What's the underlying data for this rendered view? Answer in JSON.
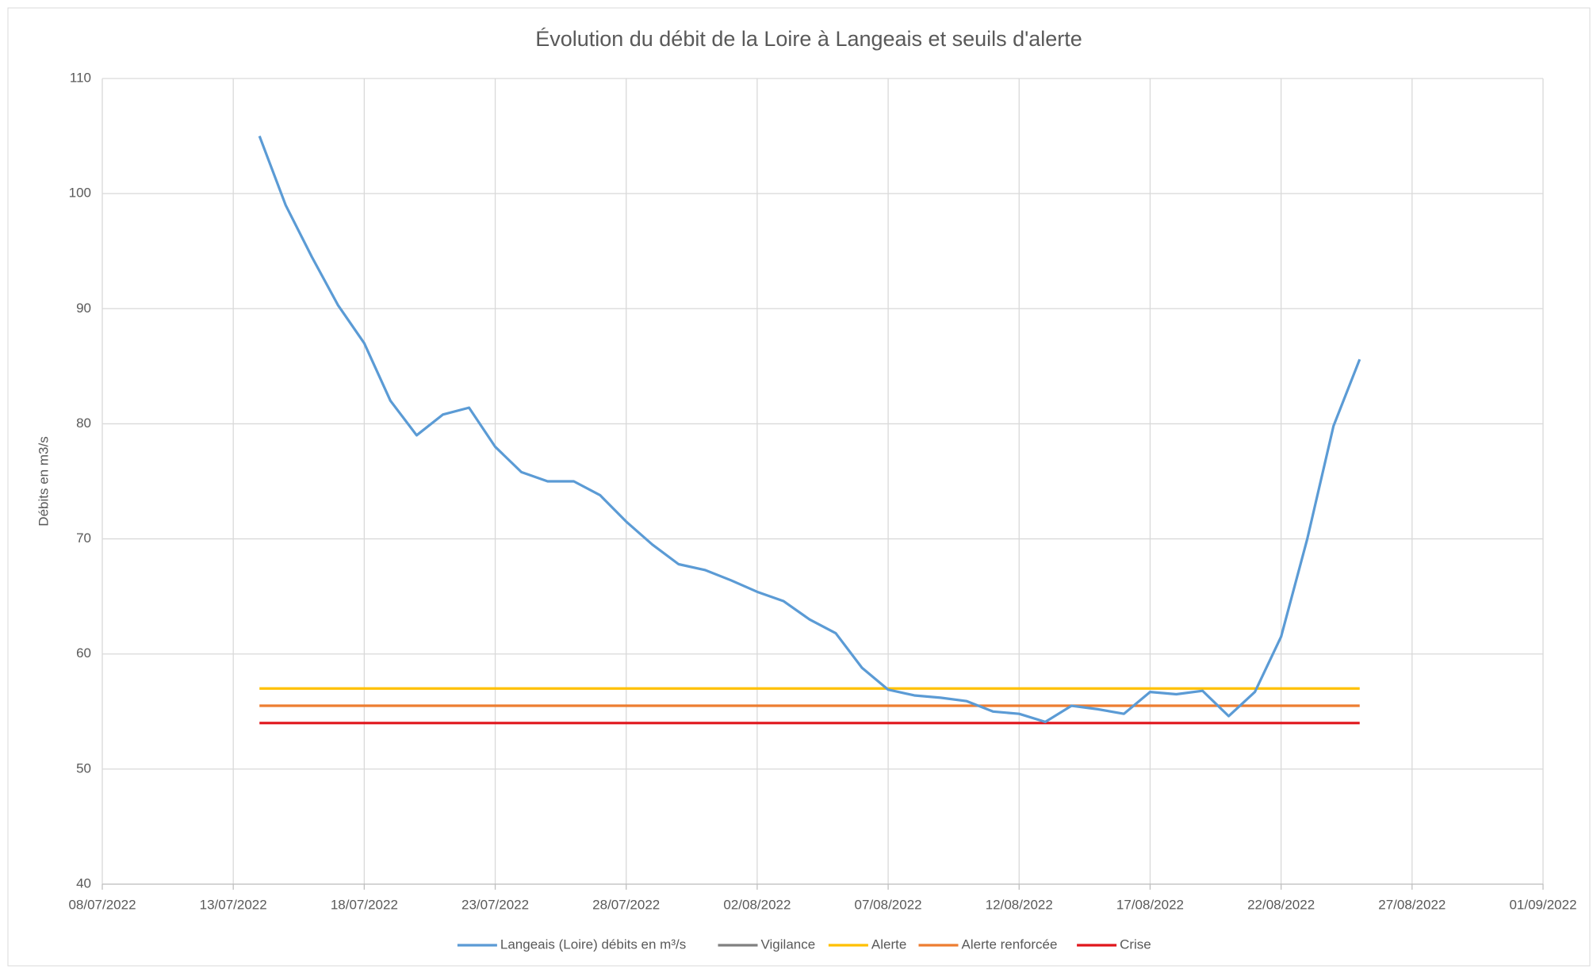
{
  "chart_data": {
    "type": "line",
    "title": "Évolution du débit de la Loire à Langeais et seuils d'alerte",
    "y_label": "Débits en m3/s",
    "x": [
      "2022-07-14",
      "2022-07-15",
      "2022-07-16",
      "2022-07-17",
      "2022-07-18",
      "2022-07-19",
      "2022-07-20",
      "2022-07-21",
      "2022-07-22",
      "2022-07-23",
      "2022-07-24",
      "2022-07-25",
      "2022-07-26",
      "2022-07-27",
      "2022-07-28",
      "2022-07-29",
      "2022-07-30",
      "2022-07-31",
      "2022-08-01",
      "2022-08-02",
      "2022-08-03",
      "2022-08-04",
      "2022-08-05",
      "2022-08-06",
      "2022-08-07",
      "2022-08-08",
      "2022-08-09",
      "2022-08-10",
      "2022-08-11",
      "2022-08-12",
      "2022-08-13",
      "2022-08-14",
      "2022-08-15",
      "2022-08-16",
      "2022-08-17",
      "2022-08-18",
      "2022-08-19",
      "2022-08-20",
      "2022-08-21",
      "2022-08-22",
      "2022-08-23",
      "2022-08-24",
      "2022-08-25"
    ],
    "series": [
      {
        "name": "Langeais (Loire) débits en m³/s",
        "color": "#5b9bd5",
        "values": [
          105,
          99,
          94.5,
          90.3,
          87,
          82,
          79,
          80.8,
          81.4,
          78,
          75.8,
          75,
          75,
          73.8,
          71.5,
          69.5,
          67.8,
          67.3,
          66.4,
          65.4,
          64.6,
          63,
          61.8,
          58.8,
          56.9,
          56.4,
          56.2,
          55.9,
          55,
          54.8,
          54.1,
          55.5,
          55.2,
          54.8,
          56.7,
          56.5,
          56.8,
          54.6,
          56.7,
          61.5,
          70,
          79.8,
          85.6
        ]
      },
      {
        "name": "Vigilance",
        "color": "#808080",
        "values": [
          null,
          null,
          null,
          null,
          null,
          null,
          null,
          null,
          null,
          null,
          null,
          null,
          null,
          null,
          null,
          null,
          null,
          null,
          null,
          null,
          null,
          null,
          null,
          null,
          null,
          null,
          null,
          null,
          null,
          null,
          null,
          null,
          null,
          null,
          null,
          null,
          null,
          null,
          null,
          null,
          null,
          null,
          null
        ]
      },
      {
        "name": "Alerte",
        "color": "#ffc000",
        "values": [
          57,
          57,
          57,
          57,
          57,
          57,
          57,
          57,
          57,
          57,
          57,
          57,
          57,
          57,
          57,
          57,
          57,
          57,
          57,
          57,
          57,
          57,
          57,
          57,
          57,
          57,
          57,
          57,
          57,
          57,
          57,
          57,
          57,
          57,
          57,
          57,
          57,
          57,
          57,
          57,
          57,
          57,
          57
        ]
      },
      {
        "name": "Alerte renforcée",
        "color": "#ed7d31",
        "values": [
          55.5,
          55.5,
          55.5,
          55.5,
          55.5,
          55.5,
          55.5,
          55.5,
          55.5,
          55.5,
          55.5,
          55.5,
          55.5,
          55.5,
          55.5,
          55.5,
          55.5,
          55.5,
          55.5,
          55.5,
          55.5,
          55.5,
          55.5,
          55.5,
          55.5,
          55.5,
          55.5,
          55.5,
          55.5,
          55.5,
          55.5,
          55.5,
          55.5,
          55.5,
          55.5,
          55.5,
          55.5,
          55.5,
          55.5,
          55.5,
          55.5,
          55.5,
          55.5
        ]
      },
      {
        "name": "Crise",
        "color": "#e0161c",
        "values": [
          54,
          54,
          54,
          54,
          54,
          54,
          54,
          54,
          54,
          54,
          54,
          54,
          54,
          54,
          54,
          54,
          54,
          54,
          54,
          54,
          54,
          54,
          54,
          54,
          54,
          54,
          54,
          54,
          54,
          54,
          54,
          54,
          54,
          54,
          54,
          54,
          54,
          54,
          54,
          54,
          54,
          54,
          54
        ]
      }
    ],
    "xlim": [
      "2022-07-08",
      "2022-09-01"
    ],
    "xticks": [
      {
        "value": "2022-07-08",
        "label": "08/07/2022"
      },
      {
        "value": "2022-07-13",
        "label": "13/07/2022"
      },
      {
        "value": "2022-07-18",
        "label": "18/07/2022"
      },
      {
        "value": "2022-07-23",
        "label": "23/07/2022"
      },
      {
        "value": "2022-07-28",
        "label": "28/07/2022"
      },
      {
        "value": "2022-08-02",
        "label": "02/08/2022"
      },
      {
        "value": "2022-08-07",
        "label": "07/08/2022"
      },
      {
        "value": "2022-08-12",
        "label": "12/08/2022"
      },
      {
        "value": "2022-08-17",
        "label": "17/08/2022"
      },
      {
        "value": "2022-08-22",
        "label": "22/08/2022"
      },
      {
        "value": "2022-08-27",
        "label": "27/08/2022"
      },
      {
        "value": "2022-09-01",
        "label": "01/09/2022"
      }
    ],
    "ylim": [
      40,
      110
    ],
    "yticks": [
      40,
      50,
      60,
      70,
      80,
      90,
      100,
      110
    ],
    "grid": true,
    "legend": "bottom"
  }
}
